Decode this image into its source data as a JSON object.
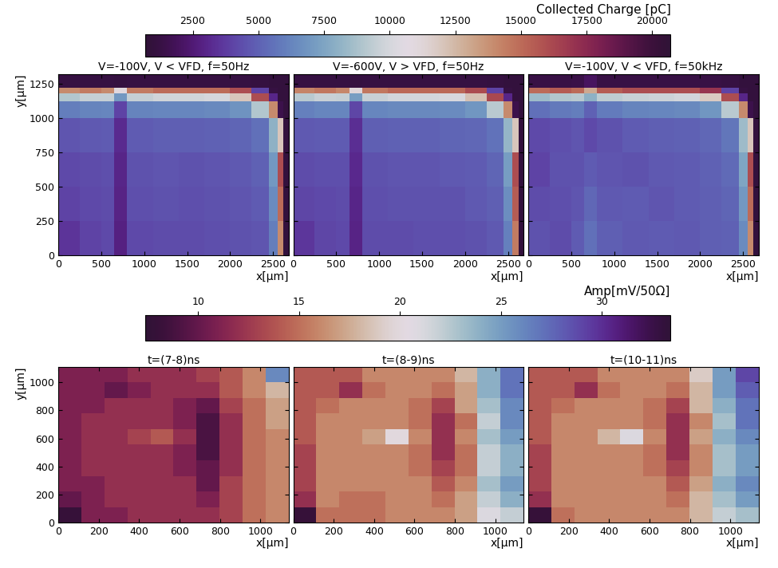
{
  "chart_data": [
    {
      "type": "heatmap",
      "xlabel": "x[μm]",
      "ylabel": "y[μm]",
      "xlim": [
        0,
        2680
      ],
      "ylim": [
        0,
        1320
      ],
      "xticks": [
        0,
        500,
        1000,
        1500,
        2000,
        2500
      ],
      "yticks": [
        0,
        250,
        500,
        750,
        1000,
        1250
      ],
      "x_edges": [
        0,
        250,
        500,
        650,
        800,
        1100,
        1400,
        1700,
        2000,
        2250,
        2450,
        2550,
        2620,
        2680
      ],
      "y_edges": [
        0,
        250,
        500,
        750,
        1000,
        1120,
        1180,
        1220,
        1320
      ],
      "colorbar_label": "Collected Charge [pC]",
      "colorbar_range": [
        700,
        20700
      ],
      "colorbar_ticks": [
        2500,
        5000,
        7500,
        10000,
        12500,
        15000,
        17500,
        20000
      ],
      "panels": [
        {
          "title": "V=-100V, V < VFD, f=50Hz",
          "cells": [
            [
              3500,
              4000,
              4200,
              2800,
              4200,
              4300,
              4300,
              4400,
              4500,
              4600,
              6000,
              14000,
              1000
            ],
            [
              4000,
              4200,
              4300,
              2900,
              4400,
              4500,
              4400,
              4500,
              4600,
              4800,
              6500,
              15000,
              1000
            ],
            [
              4200,
              4300,
              4400,
              3000,
              4500,
              4600,
              4500,
              4600,
              4700,
              5000,
              7000,
              16000,
              1000
            ],
            [
              4600,
              4700,
              4800,
              3200,
              4800,
              4900,
              4900,
              5000,
              5100,
              5500,
              8000,
              12000,
              1000
            ],
            [
              6000,
              6200,
              6300,
              4000,
              6200,
              6300,
              6300,
              6400,
              6800,
              9000,
              14000,
              1500,
              1000
            ],
            [
              9000,
              9500,
              9500,
              7000,
              9500,
              9800,
              9800,
              10000,
              12000,
              16000,
              3000,
              1000,
              1000
            ],
            [
              14000,
              14500,
              14000,
              11000,
              14500,
              15000,
              15000,
              15000,
              16000,
              4000,
              1200,
              1000,
              1000
            ],
            [
              1200,
              1200,
              1200,
              1100,
              1200,
              1200,
              1200,
              1200,
              1200,
              1100,
              1000,
              1000,
              1000
            ]
          ]
        },
        {
          "title": "V=-600V, V > VFD, f=50Hz",
          "tick_labels": "x",
          "cells": [
            [
              3600,
              4100,
              4200,
              2900,
              4300,
              4300,
              4400,
              4400,
              4500,
              4700,
              6100,
              14500,
              1000
            ],
            [
              4100,
              4200,
              4300,
              3000,
              4400,
              4500,
              4500,
              4500,
              4700,
              4900,
              6600,
              15500,
              1000
            ],
            [
              4300,
              4400,
              4400,
              3100,
              4500,
              4600,
              4600,
              4700,
              4800,
              5100,
              7200,
              16000,
              1000
            ],
            [
              4700,
              4800,
              4800,
              3300,
              4900,
              5000,
              5000,
              5100,
              5200,
              5600,
              8200,
              12000,
              1000
            ],
            [
              6100,
              6300,
              6300,
              4100,
              6300,
              6400,
              6400,
              6500,
              6900,
              9200,
              14000,
              1500,
              1000
            ],
            [
              9200,
              9600,
              9500,
              7200,
              9600,
              9900,
              9900,
              10100,
              12200,
              16200,
              3000,
              1000,
              1000
            ],
            [
              14200,
              14600,
              14100,
              11200,
              14600,
              15100,
              15100,
              15100,
              16100,
              4000,
              1200,
              1000,
              1000
            ],
            [
              1200,
              1200,
              1200,
              1100,
              1200,
              1200,
              1200,
              1200,
              1200,
              1100,
              1000,
              1000,
              1000
            ]
          ]
        },
        {
          "title": "V=-100V, V < VFD, f=50kHz",
          "tick_labels": "x",
          "cells": [
            [
              4500,
              4300,
              4800,
              5500,
              4900,
              4700,
              4800,
              4700,
              4900,
              5000,
              6500,
              14000,
              1000
            ],
            [
              4300,
              4400,
              4600,
              5200,
              4700,
              4800,
              4600,
              4800,
              4900,
              5100,
              7000,
              15000,
              1000
            ],
            [
              4000,
              4500,
              4500,
              4800,
              4600,
              4500,
              4700,
              4800,
              5000,
              5300,
              7500,
              16000,
              1000
            ],
            [
              4200,
              4400,
              4600,
              4200,
              4500,
              4800,
              4900,
              5000,
              5200,
              5700,
              8500,
              12000,
              1000
            ],
            [
              5500,
              5800,
              6000,
              5000,
              5900,
              6200,
              6300,
              6400,
              6900,
              9200,
              14000,
              1500,
              1000
            ],
            [
              8500,
              9000,
              9200,
              8000,
              9300,
              9600,
              9700,
              9900,
              11800,
              16000,
              3000,
              1000,
              1000
            ],
            [
              15000,
              15500,
              15000,
              13000,
              15500,
              16000,
              16000,
              16000,
              17000,
              4000,
              1200,
              1000,
              1000
            ],
            [
              1300,
              1300,
              1400,
              2000,
              1300,
              1300,
              1300,
              1300,
              1300,
              1200,
              1000,
              1000,
              1000
            ]
          ]
        }
      ]
    },
    {
      "type": "heatmap",
      "xlabel": "x[μm]",
      "ylabel": "y[μm]",
      "xlim": [
        0,
        1140
      ],
      "ylim": [
        0,
        1110
      ],
      "xticks": [
        0,
        200,
        400,
        600,
        800,
        1000
      ],
      "yticks": [
        0,
        200,
        400,
        600,
        800,
        1000
      ],
      "x_edges": [
        0,
        114,
        228,
        342,
        456,
        570,
        684,
        798,
        912,
        1026,
        1140
      ],
      "y_edges": [
        0,
        111,
        222,
        333,
        444,
        555,
        666,
        777,
        888,
        999,
        1110
      ],
      "colorbar_label": "Amp[mV/50Ω]",
      "colorbar_range": [
        7.4,
        33.4
      ],
      "colorbar_ticks": [
        10,
        15,
        20,
        25,
        30
      ],
      "panels": [
        {
          "title": "t=(7-8)ns",
          "cells": [
            [
              8,
              11,
              11,
              12,
              12,
              12,
              12,
              13,
              15,
              16
            ],
            [
              10,
              11,
              12,
              12,
              12,
              12,
              11,
              13,
              15,
              16
            ],
            [
              11,
              11,
              12,
              12,
              12,
              12,
              10,
              13,
              15,
              16
            ],
            [
              11,
              12,
              12,
              12,
              12,
              11,
              10,
              12,
              15,
              16
            ],
            [
              11,
              12,
              12,
              12,
              12,
              11,
              9,
              12,
              15,
              16
            ],
            [
              11,
              12,
              12,
              13,
              14,
              12,
              9,
              12,
              15,
              16
            ],
            [
              11,
              12,
              12,
              12,
              12,
              11,
              9,
              12,
              15,
              17
            ],
            [
              11,
              11,
              12,
              12,
              12,
              11,
              10,
              13,
              15,
              17
            ],
            [
              11,
              11,
              10,
              11,
              12,
              12,
              12,
              14,
              16,
              18
            ],
            [
              11,
              11,
              11,
              12,
              12,
              12,
              13,
              14,
              16,
              26
            ]
          ]
        },
        {
          "title": "t=(8-9)ns",
          "tick_labels": "x",
          "cells": [
            [
              8,
              15,
              15,
              15,
              16,
              16,
              16,
              17,
              21,
              22
            ],
            [
              12,
              16,
              15,
              15,
              16,
              16,
              15,
              17,
              22,
              24
            ],
            [
              13,
              16,
              16,
              16,
              16,
              16,
              14,
              16,
              23,
              25
            ],
            [
              13,
              16,
              16,
              16,
              16,
              15,
              13,
              15,
              22,
              24
            ],
            [
              13,
              16,
              16,
              16,
              16,
              15,
              12,
              15,
              22,
              24
            ],
            [
              14,
              16,
              16,
              17,
              20,
              16,
              12,
              16,
              23,
              25
            ],
            [
              14,
              16,
              16,
              16,
              16,
              15,
              12,
              15,
              22,
              26
            ],
            [
              14,
              15,
              16,
              16,
              16,
              15,
              13,
              17,
              23,
              26
            ],
            [
              14,
              14,
              12,
              15,
              16,
              16,
              15,
              17,
              24,
              27
            ],
            [
              14,
              14,
              14,
              16,
              16,
              16,
              16,
              18,
              24,
              27
            ]
          ]
        },
        {
          "title": "t=(10-11)ns",
          "tick_labels": "x",
          "cells": [
            [
              8,
              15,
              16,
              16,
              16,
              16,
              16,
              18,
              22,
              23
            ],
            [
              12,
              16,
              16,
              16,
              16,
              16,
              15,
              18,
              23,
              25
            ],
            [
              13,
              16,
              16,
              16,
              16,
              16,
              14,
              17,
              24,
              26
            ],
            [
              13,
              16,
              16,
              16,
              16,
              15,
              13,
              16,
              23,
              25
            ],
            [
              13,
              16,
              16,
              16,
              16,
              15,
              12,
              16,
              23,
              25
            ],
            [
              14,
              16,
              16,
              18,
              21,
              16,
              12,
              17,
              24,
              26
            ],
            [
              14,
              16,
              16,
              16,
              16,
              15,
              12,
              16,
              23,
              27
            ],
            [
              14,
              15,
              16,
              16,
              16,
              15,
              13,
              18,
              24,
              27
            ],
            [
              14,
              14,
              12,
              15,
              16,
              16,
              15,
              18,
              25,
              28
            ],
            [
              14,
              14,
              14,
              16,
              16,
              16,
              16,
              19,
              25,
              29
            ]
          ]
        }
      ]
    }
  ]
}
